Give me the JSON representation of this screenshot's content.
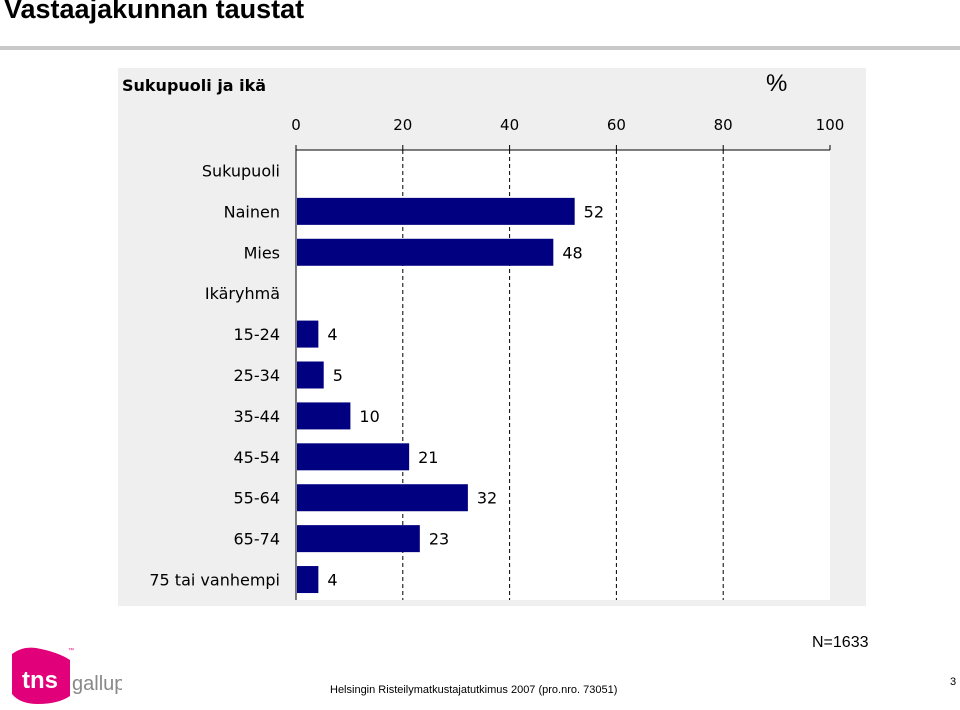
{
  "slide": {
    "title": "Vastaajakunnan taustat",
    "n_label": "N=1633",
    "footer": "Helsingin Risteilymatkustajatutkimus 2007 (pro.nro. 73051)",
    "page_number": "3",
    "logo": {
      "tns": "tns",
      "gallup": "gallup",
      "tm": "™"
    }
  },
  "colors": {
    "bar": "#000080",
    "gridline": "#000000",
    "background": "#efefef",
    "logo": "#e2007a",
    "logo_text": "#888888"
  },
  "chart_data": {
    "type": "bar",
    "orientation": "horizontal",
    "title": "Sukupuoli ja ikä",
    "unit_label": "%",
    "xlim": [
      0,
      100
    ],
    "xticks": [
      "0",
      "20",
      "40",
      "60",
      "80",
      "100"
    ],
    "grid": true,
    "categories": [
      "Sukupuoli",
      "Nainen",
      "Mies",
      "Ikäryhmä",
      "15-24",
      "25-34",
      "35-44",
      "45-54",
      "55-64",
      "65-74",
      "75 tai vanhempi"
    ],
    "values": [
      null,
      52,
      48,
      null,
      4,
      5,
      10,
      21,
      32,
      23,
      4
    ],
    "value_labels": [
      "",
      "52",
      "48",
      "",
      "4",
      "5",
      "10",
      "21",
      "32",
      "23",
      "4"
    ]
  }
}
